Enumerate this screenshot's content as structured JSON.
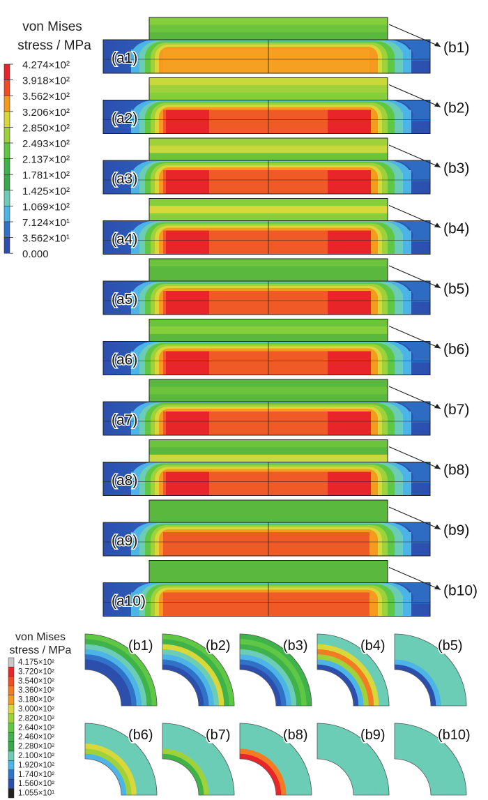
{
  "legend_top": {
    "title_lines": [
      "von Mises",
      "stress / MPa"
    ],
    "labels": [
      "4.274×10²",
      "3.918×10²",
      "3.562×10²",
      "3.206×10²",
      "2.850×10²",
      "2.493×10²",
      "2.137×10²",
      "1.781×10²",
      "1.425×10²",
      "1.069×10²",
      "7.124×10¹",
      "3.562×10¹",
      "0.000"
    ],
    "colors": [
      "#e8262a",
      "#f04b23",
      "#f59a1f",
      "#d8d83a",
      "#9fd23a",
      "#5ec845",
      "#3fb24a",
      "#39a84c",
      "#6ccdb6",
      "#4cb4e6",
      "#2f72c7",
      "#2c4fae"
    ]
  },
  "legend_bottom": {
    "title_lines": [
      "von Mises",
      "stress / MPa"
    ],
    "labels": [
      "4.175×10²",
      "3.720×10²",
      "3.540×10²",
      "3.360×10²",
      "3.180×10²",
      "3.000×10²",
      "2.820×10²",
      "2.640×10²",
      "2.460×10²",
      "2.280×10²",
      "2.100×10²",
      "1.920×10²",
      "1.740×10²",
      "1.560×10²",
      "1.055×10¹"
    ],
    "colors": [
      "#c8c8c8",
      "#e8262a",
      "#f04b23",
      "#f57b22",
      "#f59a1f",
      "#d8d83a",
      "#9fd23a",
      "#5ec845",
      "#3fb24a",
      "#39a84c",
      "#6ccdb6",
      "#4cb4e6",
      "#2f72c7",
      "#2c4fae",
      "#222222"
    ]
  },
  "panels": [
    {
      "a": "(a1)",
      "b": "(b1)",
      "core": "#f5a020",
      "peak": "#f5a020",
      "top": [
        "#86cf3c",
        "#6cc43d",
        "#5ab83f"
      ]
    },
    {
      "a": "(a2)",
      "b": "(b2)",
      "core": "#ef5a26",
      "peak": "#e8262a",
      "top": [
        "#c9d83a",
        "#9fd23a",
        "#86cf3c"
      ]
    },
    {
      "a": "(a3)",
      "b": "(b3)",
      "core": "#ef5a26",
      "peak": "#e8262a",
      "top": [
        "#9fd23a",
        "#c9d83a",
        "#6cc43d"
      ]
    },
    {
      "a": "(a4)",
      "b": "(b4)",
      "core": "#ef5a26",
      "peak": "#e8262a",
      "top": [
        "#86cf3c",
        "#d8d83a",
        "#86cf3c"
      ]
    },
    {
      "a": "(a5)",
      "b": "(b5)",
      "core": "#ef5a26",
      "peak": "#e8262a",
      "top": [
        "#6cc43d",
        "#5ab83f",
        "#5ab83f"
      ]
    },
    {
      "a": "(a6)",
      "b": "(b6)",
      "core": "#ef5a26",
      "peak": "#e8262a",
      "top": [
        "#6cc43d",
        "#86cf3c",
        "#5ab83f"
      ]
    },
    {
      "a": "(a7)",
      "b": "(b7)",
      "core": "#ef5a26",
      "peak": "#e8262a",
      "top": [
        "#5ab83f",
        "#6cc43d",
        "#5ab83f"
      ]
    },
    {
      "a": "(a8)",
      "b": "(b8)",
      "core": "#ef5a26",
      "peak": "#e8262a",
      "top": [
        "#6cc43d",
        "#5ab83f",
        "#c9d83a"
      ]
    },
    {
      "a": "(a9)",
      "b": "(b9)",
      "core": "#ef5a26",
      "peak": "#ef5a26",
      "top": [
        "#5ab83f",
        "#5ab83f",
        "#5ab83f"
      ]
    },
    {
      "a": "(a10)",
      "b": "(b10)",
      "core": "#ef5a26",
      "peak": "#ef5a26",
      "top": [
        "#5ab83f",
        "#5ab83f",
        "#5ab83f"
      ]
    }
  ],
  "quarters": [
    {
      "label": "(b1)",
      "bands": [
        "#2c4fae",
        "#2c4fae",
        "#2f72c7",
        "#4cb4e6",
        "#6ccdb6",
        "#3fb24a",
        "#5ec845"
      ]
    },
    {
      "label": "(b2)",
      "bands": [
        "#2c4fae",
        "#2f72c7",
        "#4cb4e6",
        "#6ccdb6",
        "#d8d83a",
        "#3fb24a",
        "#5ec845"
      ]
    },
    {
      "label": "(b3)",
      "bands": [
        "#2c4fae",
        "#2f72c7",
        "#4cb4e6",
        "#6ccdb6",
        "#3fb24a",
        "#5ec845",
        "#3fb24a"
      ]
    },
    {
      "label": "(b4)",
      "bands": [
        "#2c4fae",
        "#4cb4e6",
        "#9fd23a",
        "#f57b22",
        "#d8d83a",
        "#6ccdb6",
        "#6ccdb6"
      ]
    },
    {
      "label": "(b5)",
      "bands": [
        "#2c4fae",
        "#4cb4e6",
        "#6ccdb6",
        "#6ccdb6",
        "#6ccdb6",
        "#6ccdb6",
        "#6ccdb6"
      ]
    },
    {
      "label": "(b6)",
      "bands": [
        "#4cb4e6",
        "#9fd23a",
        "#d8d83a",
        "#6ccdb6",
        "#6ccdb6",
        "#6ccdb6",
        "#6ccdb6"
      ]
    },
    {
      "label": "(b7)",
      "bands": [
        "#3fb24a",
        "#9fd23a",
        "#6ccdb6",
        "#6ccdb6",
        "#6ccdb6",
        "#6ccdb6",
        "#6ccdb6"
      ]
    },
    {
      "label": "(b8)",
      "bands": [
        "#e8262a",
        "#f57b22",
        "#6ccdb6",
        "#6ccdb6",
        "#6ccdb6",
        "#6ccdb6",
        "#6ccdb6"
      ]
    },
    {
      "label": "(b9)",
      "bands": [
        "#6ccdb6",
        "#6ccdb6",
        "#6ccdb6",
        "#6ccdb6",
        "#6ccdb6",
        "#6ccdb6",
        "#6ccdb6"
      ]
    },
    {
      "label": "(b10)",
      "bands": [
        "#6ccdb6",
        "#6ccdb6",
        "#6ccdb6",
        "#6ccdb6",
        "#6ccdb6",
        "#6ccdb6",
        "#6ccdb6"
      ]
    }
  ]
}
